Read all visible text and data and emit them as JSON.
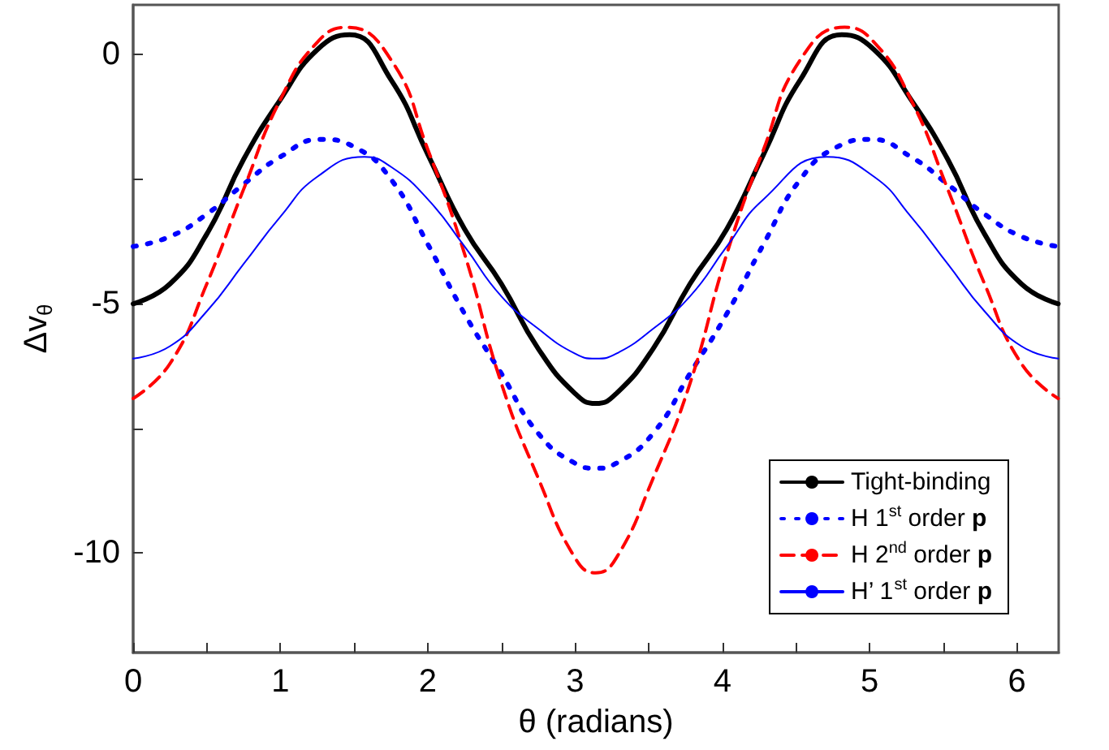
{
  "chart_data": {
    "type": "line",
    "xlabel": "θ (radians)",
    "ylabel": "Δv$_{θ}$",
    "xlim": [
      0,
      6.283
    ],
    "ylim": [
      -12,
      1
    ],
    "xticks": [
      0,
      {
        "value": 0.5,
        "label": null
      },
      1,
      {
        "value": 1.5,
        "label": null
      },
      2,
      {
        "value": 2.5,
        "label": null
      },
      3,
      {
        "value": 3.5,
        "label": null
      },
      4,
      {
        "value": 4.5,
        "label": null
      },
      5,
      {
        "value": 5.5,
        "label": null
      },
      6
    ],
    "yticks": [
      -10,
      {
        "value": -7.5,
        "label": null
      },
      -5,
      {
        "value": -2.5,
        "label": null
      },
      0
    ],
    "grid": false,
    "legend": "bottom right",
    "marker": "none",
    "series": [
      {
        "name": "Tight-binding",
        "color": "#000000",
        "line_style": "solid",
        "x": [
          0,
          0.25,
          0.5,
          0.75,
          1,
          1.25,
          1.47,
          1.75,
          2,
          2.25,
          2.5,
          2.75,
          3,
          3.14,
          3.28,
          3.53,
          3.78,
          4.03,
          4.28,
          4.53,
          4.81,
          5.03,
          5.28,
          5.53,
          5.78,
          6.03,
          6.28
        ],
        "values": [
          -5.0,
          -4.6,
          -3.6,
          -2.1,
          -0.9,
          0.1,
          0.4,
          -0.5,
          -2.0,
          -3.5,
          -4.6,
          -5.9,
          -6.8,
          -7.0,
          -6.8,
          -5.9,
          -4.6,
          -3.5,
          -2.0,
          -0.5,
          0.4,
          0.1,
          -0.9,
          -2.1,
          -3.6,
          -4.6,
          -5.0
        ]
      },
      {
        "name": "H 1$^{st}$ order p",
        "color": "#0000ff",
        "line_style": "dotted",
        "x": [
          0,
          0.25,
          0.5,
          0.75,
          1,
          1.27,
          1.5,
          1.75,
          2,
          2.25,
          2.5,
          2.75,
          3,
          3.14,
          3.28,
          3.53,
          3.78,
          4.03,
          4.28,
          4.53,
          4.78,
          5.01,
          5.28,
          5.53,
          5.78,
          6.03,
          6.28
        ],
        "values": [
          -3.85,
          -3.65,
          -3.2,
          -2.6,
          -2.05,
          -1.7,
          -1.85,
          -2.5,
          -3.8,
          -5.2,
          -6.4,
          -7.6,
          -8.2,
          -8.3,
          -8.2,
          -7.6,
          -6.4,
          -5.2,
          -3.8,
          -2.5,
          -1.85,
          -1.7,
          -2.05,
          -2.6,
          -3.2,
          -3.65,
          -3.85
        ]
      },
      {
        "name": "H 2$^{nd}$ order p",
        "color": "#ff0000",
        "line_style": "dashed",
        "x": [
          0,
          0.25,
          0.5,
          0.75,
          1,
          1.25,
          1.45,
          1.75,
          2,
          2.25,
          2.5,
          2.75,
          3,
          3.14,
          3.28,
          3.53,
          3.78,
          4.03,
          4.28,
          4.53,
          4.83,
          5.03,
          5.28,
          5.53,
          5.78,
          6.03,
          6.28
        ],
        "values": [
          -6.9,
          -6.2,
          -4.6,
          -2.7,
          -0.9,
          0.25,
          0.55,
          -0.1,
          -1.9,
          -4.0,
          -6.6,
          -8.5,
          -10.1,
          -10.4,
          -10.1,
          -8.5,
          -6.6,
          -4.0,
          -1.9,
          -0.1,
          0.55,
          0.25,
          -0.9,
          -2.7,
          -4.6,
          -6.2,
          -6.9
        ]
      },
      {
        "name": "H’ 1$^{st}$ order p",
        "color": "#0000ff",
        "line_style": "solid",
        "x": [
          0,
          0.25,
          0.5,
          0.75,
          1,
          1.25,
          1.57,
          1.75,
          2,
          2.25,
          2.5,
          2.75,
          3,
          3.14,
          3.28,
          3.53,
          3.78,
          4.03,
          4.28,
          4.71,
          5.03,
          5.28,
          5.53,
          5.78,
          6.03,
          6.28
        ],
        "values": [
          -6.1,
          -5.85,
          -5.15,
          -4.2,
          -3.25,
          -2.45,
          -2.05,
          -2.25,
          -2.9,
          -3.85,
          -4.85,
          -5.5,
          -6.0,
          -6.1,
          -6.0,
          -5.5,
          -4.85,
          -3.85,
          -2.9,
          -2.05,
          -2.45,
          -3.25,
          -4.2,
          -5.15,
          -5.85,
          -6.1
        ]
      }
    ]
  }
}
